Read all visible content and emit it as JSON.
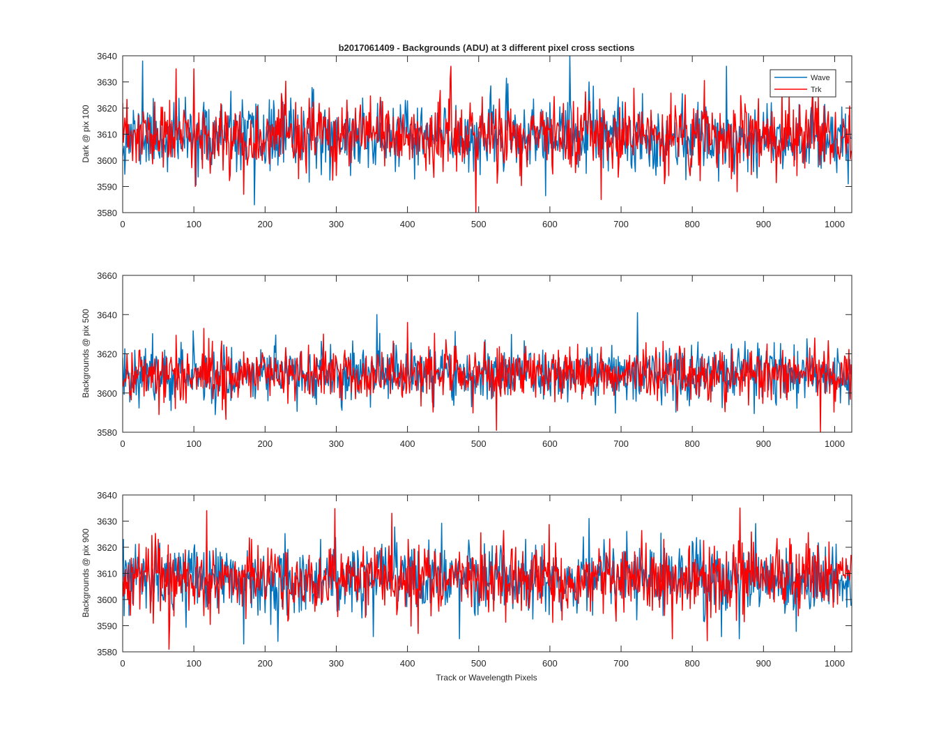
{
  "figure": {
    "title": "b2017061409 - Backgrounds (ADU) at 3 different pixel cross sections",
    "xlabel": "Track or Wavelength Pixels"
  },
  "chart_data": [
    {
      "type": "line",
      "ylabel": "Dark @ pix 100",
      "xlim": [
        0,
        1024
      ],
      "ylim": [
        3580,
        3640
      ],
      "xticks": [
        0,
        100,
        200,
        300,
        400,
        500,
        600,
        700,
        800,
        900,
        1000
      ],
      "yticks": [
        3580,
        3590,
        3600,
        3610,
        3620,
        3630,
        3640
      ],
      "legend": {
        "position": "top-right",
        "entries": [
          "Wave",
          "Trk"
        ]
      },
      "noise_model": {
        "points": 1024,
        "mean": 3609,
        "std": 6.5
      },
      "series": [
        {
          "name": "Wave",
          "color": "#0072BD",
          "seed": 11,
          "peaks": [
            [
              28,
              3638
            ],
            [
              185,
              3583
            ],
            [
              628,
              3640
            ],
            [
              655,
              3630
            ],
            [
              848,
              3636
            ],
            [
              1019,
              3591
            ]
          ]
        },
        {
          "name": "Trk",
          "color": "#FF0000",
          "seed": 23,
          "peaks": [
            [
              75,
              3635
            ],
            [
              100,
              3635
            ],
            [
              102,
              3590
            ],
            [
              170,
              3587
            ],
            [
              461,
              3636
            ],
            [
              496,
              3580
            ],
            [
              672,
              3585
            ],
            [
              863,
              3588
            ]
          ]
        }
      ]
    },
    {
      "type": "line",
      "ylabel": "Backgrounds @ pix 500",
      "xlim": [
        0,
        1024
      ],
      "ylim": [
        3580,
        3660
      ],
      "xticks": [
        0,
        100,
        200,
        300,
        400,
        500,
        600,
        700,
        800,
        900,
        1000
      ],
      "yticks": [
        3580,
        3600,
        3620,
        3640,
        3660
      ],
      "noise_model": {
        "points": 1024,
        "mean": 3610,
        "std": 7
      },
      "series": [
        {
          "name": "Wave",
          "color": "#0072BD",
          "seed": 37,
          "peaks": [
            [
              357,
              3640
            ],
            [
              723,
              3641
            ],
            [
              130,
              3589
            ],
            [
              1020,
              3594
            ]
          ]
        },
        {
          "name": "Trk",
          "color": "#FF0000",
          "seed": 41,
          "peaks": [
            [
              400,
              3636
            ],
            [
              525,
              3581
            ],
            [
              980,
              3580
            ],
            [
              51,
              3589
            ]
          ]
        }
      ]
    },
    {
      "type": "line",
      "ylabel": "Backgrounds @ pix 900",
      "xlim": [
        0,
        1024
      ],
      "ylim": [
        3580,
        3640
      ],
      "xticks": [
        0,
        100,
        200,
        300,
        400,
        500,
        600,
        700,
        800,
        900,
        1000
      ],
      "yticks": [
        3580,
        3590,
        3600,
        3610,
        3620,
        3630,
        3640
      ],
      "noise_model": {
        "points": 1024,
        "mean": 3608,
        "std": 6.5
      },
      "series": [
        {
          "name": "Wave",
          "color": "#0072BD",
          "seed": 53,
          "peaks": [
            [
              170,
              3583
            ],
            [
              218,
              3584
            ],
            [
              473,
              3585
            ],
            [
              655,
              3631
            ],
            [
              866,
              3585
            ]
          ]
        },
        {
          "name": "Trk",
          "color": "#FF0000",
          "seed": 67,
          "peaks": [
            [
              65,
              3581
            ],
            [
              118,
              3634
            ],
            [
              378,
              3633
            ],
            [
              772,
              3585
            ],
            [
              867,
              3635
            ],
            [
              415,
              3587
            ]
          ]
        }
      ]
    }
  ]
}
